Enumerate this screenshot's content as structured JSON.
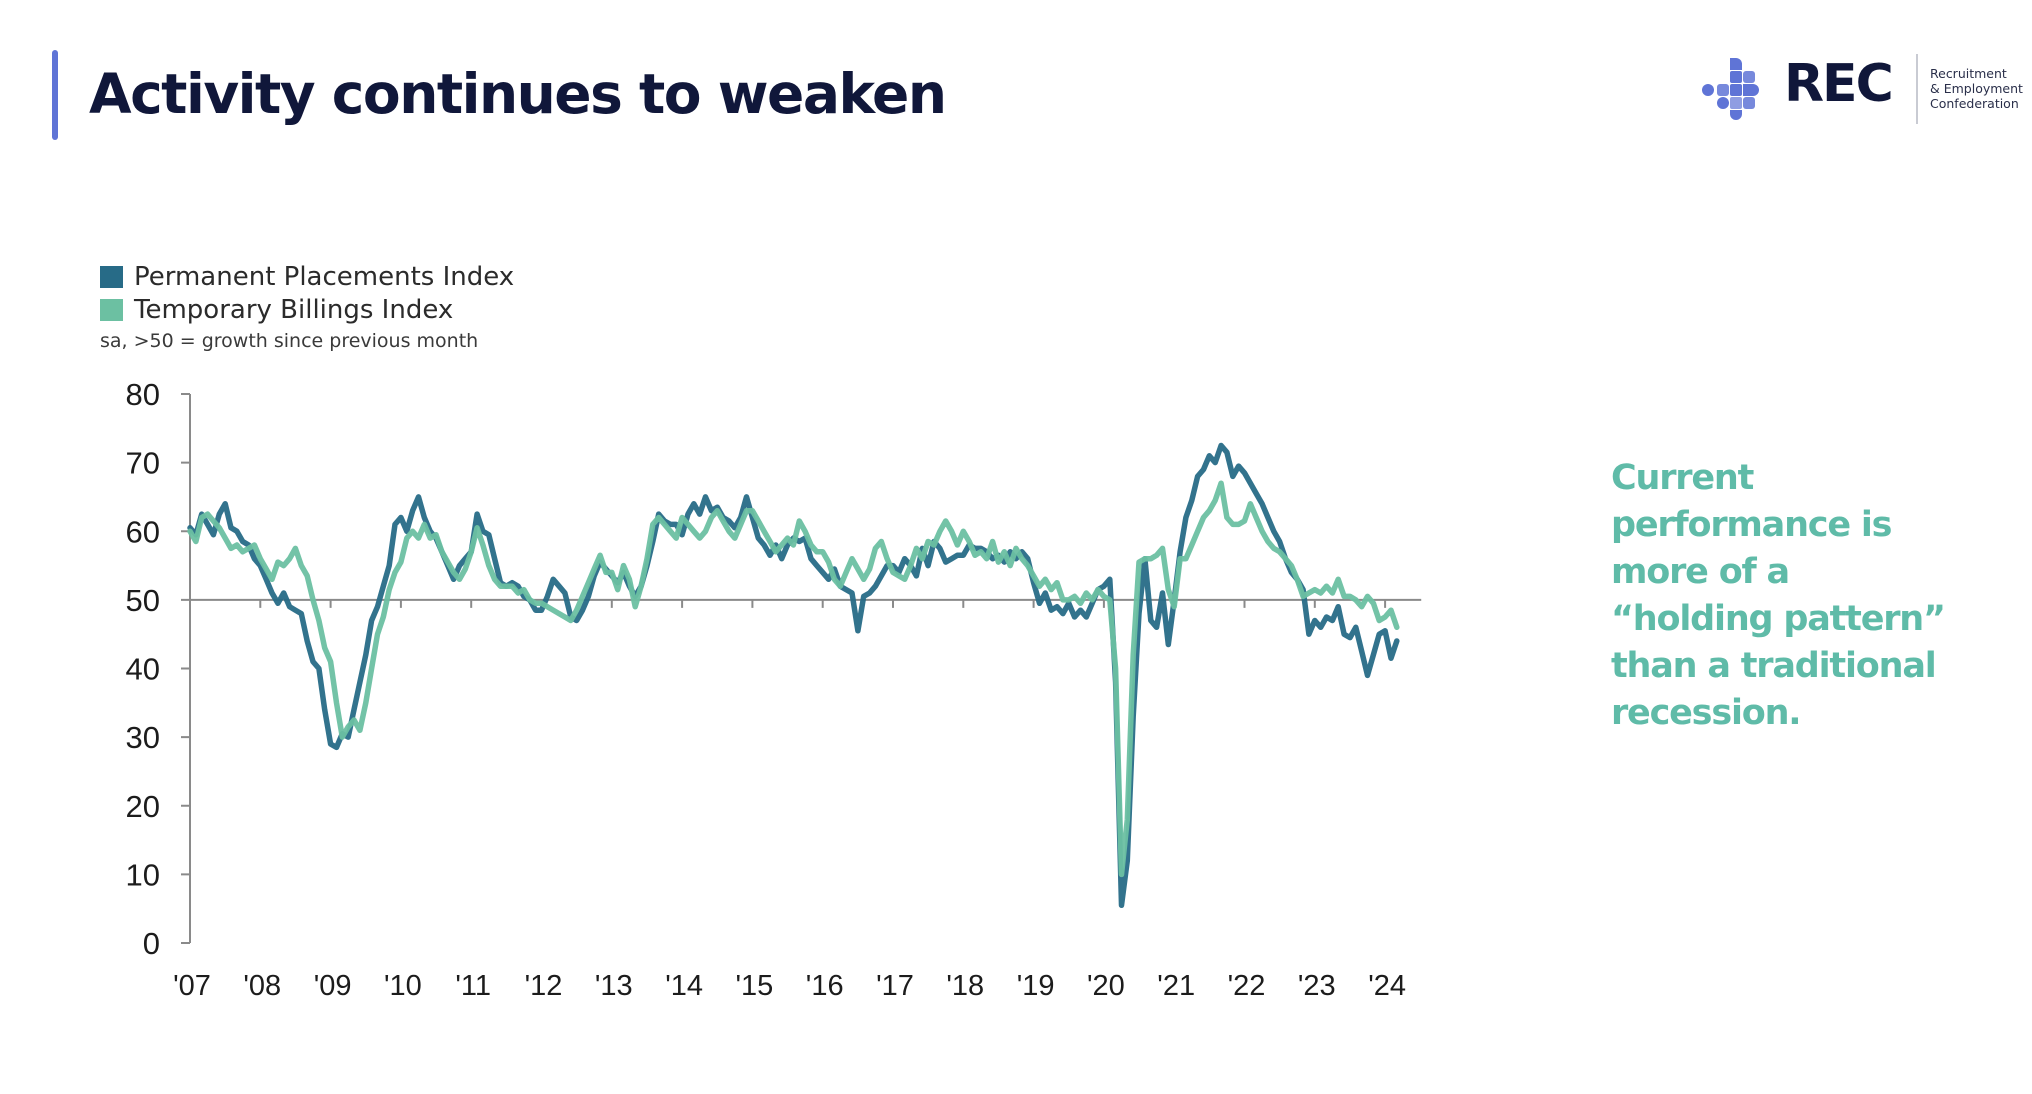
{
  "header": {
    "title": "Activity continues to weaken",
    "accent_color": "#5f74d6"
  },
  "logo": {
    "icon": "rec-cross-dots-logo-icon",
    "wordmark": "REC",
    "subtitle_lines": [
      "Recruitment",
      "& Employment",
      "Confederation"
    ],
    "brand_color": "#5f74d6"
  },
  "callout": {
    "lines": [
      "Current",
      "performance is",
      "more of a",
      "“holding pattern”",
      "than a traditional",
      "recession."
    ],
    "color": "#5fbba8"
  },
  "chart_data": {
    "type": "line",
    "title": "",
    "xlabel": "",
    "ylabel": "",
    "note": "sa, >50 = growth since previous month",
    "legend_position": "top-left",
    "grid": false,
    "reference_line": 50,
    "xlim": [
      2007,
      2024.4
    ],
    "ylim": [
      0,
      80
    ],
    "y_ticks": [
      0,
      10,
      20,
      30,
      40,
      50,
      60,
      70,
      80
    ],
    "y_tick_labels": [
      "0",
      "10",
      "20",
      "30",
      "40",
      "50",
      "60",
      "70",
      "80"
    ],
    "x_ticks": [
      2007,
      2008,
      2009,
      2010,
      2011,
      2012,
      2013,
      2014,
      2015,
      2016,
      2017,
      2018,
      2019,
      2020,
      2021,
      2022,
      2023,
      2024
    ],
    "x_tick_labels": [
      "'07",
      "'08",
      "'09",
      "'10",
      "'11",
      "'12",
      "'13",
      "'14",
      "'15",
      "'16",
      "'17",
      "'18",
      "'19",
      "'20",
      "'21",
      "'22",
      "'23",
      "'24"
    ],
    "series": [
      {
        "name": "Permanent Placements Index",
        "color": "#276b87",
        "x_start": 2007.0,
        "x_step_months": 1,
        "values": [
          60.5,
          59.5,
          62.5,
          61,
          59.5,
          62.5,
          64,
          60.5,
          60,
          58.5,
          58,
          56,
          55,
          53,
          51,
          49.5,
          51,
          49,
          48.5,
          48,
          44,
          41,
          40,
          34,
          29,
          28.5,
          30.5,
          30,
          34,
          38,
          42,
          47,
          49,
          52,
          55,
          61,
          62,
          60,
          63,
          65,
          62,
          60,
          59,
          57,
          55,
          53,
          55,
          56,
          57,
          62.5,
          60,
          59.5,
          56,
          52.5,
          52,
          52.5,
          52,
          50.5,
          50,
          48.5,
          48.5,
          50.5,
          53,
          52,
          51,
          47.5,
          47,
          48.5,
          50.5,
          53.5,
          55.5,
          54.5,
          53.5,
          52.5,
          54,
          52,
          50.5,
          52,
          55,
          58.5,
          62.5,
          61.5,
          61,
          61,
          59.5,
          62.5,
          64,
          62.5,
          65,
          63,
          63.5,
          62,
          61.5,
          60.5,
          62,
          65,
          62,
          59,
          58,
          56.5,
          58,
          56,
          58,
          59,
          58.5,
          59,
          56,
          55,
          54,
          53,
          54.5,
          52,
          51.5,
          51,
          45.5,
          50.5,
          51,
          52,
          53.5,
          55,
          55,
          54,
          56,
          55,
          53.5,
          57.5,
          55,
          58.5,
          57.5,
          55.5,
          56,
          56.5,
          56.5,
          58,
          57.5,
          57.5,
          57,
          56,
          56.5,
          55.5,
          57,
          56,
          57,
          56,
          52.5,
          49.5,
          51,
          48.5,
          49,
          48,
          49.5,
          47.5,
          48.5,
          47.5,
          49.5,
          51.5,
          52,
          53,
          38,
          5.5,
          12,
          33,
          48,
          56,
          47,
          46,
          51,
          43.5,
          50,
          57,
          62,
          64.5,
          68,
          69,
          71,
          70,
          72.5,
          71.5,
          68,
          69.5,
          68.5,
          67,
          65.5,
          64,
          62,
          60,
          58.5,
          56,
          54,
          53,
          51.5,
          45,
          47,
          46,
          47.5,
          47,
          49,
          45,
          44.5,
          46,
          42.5,
          39,
          42,
          45,
          45.5,
          41.5,
          44
        ]
      },
      {
        "name": "Temporary Billings Index",
        "color": "#6cc0a2",
        "x_start": 2007.0,
        "x_step_months": 1,
        "values": [
          60,
          58.5,
          62,
          62.5,
          61.5,
          60.5,
          59,
          57.5,
          58,
          57,
          57.5,
          58,
          56,
          54.5,
          53,
          55.5,
          55,
          56,
          57.5,
          55,
          53.5,
          50,
          47,
          43,
          41,
          35,
          30,
          31.5,
          32.5,
          31,
          35,
          40,
          45,
          47.5,
          51.5,
          54,
          55.5,
          59,
          60,
          59,
          61,
          59,
          59.5,
          57,
          55.5,
          54,
          53,
          54.5,
          57,
          60.5,
          58,
          55,
          53,
          52,
          52,
          52,
          51,
          51.5,
          50,
          49.5,
          49.5,
          49,
          48.5,
          48,
          47.5,
          47,
          48.5,
          50.5,
          52.5,
          54.5,
          56.5,
          54,
          54,
          51.5,
          55,
          53,
          49,
          52,
          56,
          61,
          62,
          61,
          60,
          59,
          62,
          61,
          60,
          59,
          60,
          62,
          63,
          61.5,
          60,
          59,
          61,
          63,
          63,
          61.5,
          60,
          58.5,
          57,
          58,
          59,
          58,
          61.5,
          60,
          58,
          57,
          57,
          55.5,
          53,
          52,
          54,
          56,
          54.5,
          53,
          54.5,
          57.5,
          58.5,
          56,
          54,
          53.5,
          53,
          55,
          57.5,
          56,
          58.5,
          58,
          60,
          61.5,
          60,
          58,
          60,
          58.5,
          56.5,
          57,
          56,
          58.5,
          55.5,
          57,
          55,
          57.5,
          56,
          55,
          53.5,
          52,
          53,
          51.5,
          52.5,
          50,
          50,
          50.5,
          49.5,
          51,
          50,
          51.5,
          50.5,
          50,
          40,
          10,
          18,
          42,
          55.5,
          56,
          56,
          56.5,
          57.5,
          51.5,
          49,
          56,
          56,
          58,
          60,
          62,
          63,
          64.5,
          67,
          62,
          61,
          61,
          61.5,
          64,
          62,
          60,
          58.5,
          57.5,
          57,
          56,
          55,
          53,
          50.5,
          51,
          51.5,
          51,
          52,
          51,
          53,
          50.5,
          50.5,
          50,
          49,
          50.5,
          49.5,
          47,
          47.5,
          48.5,
          46
        ]
      }
    ]
  }
}
